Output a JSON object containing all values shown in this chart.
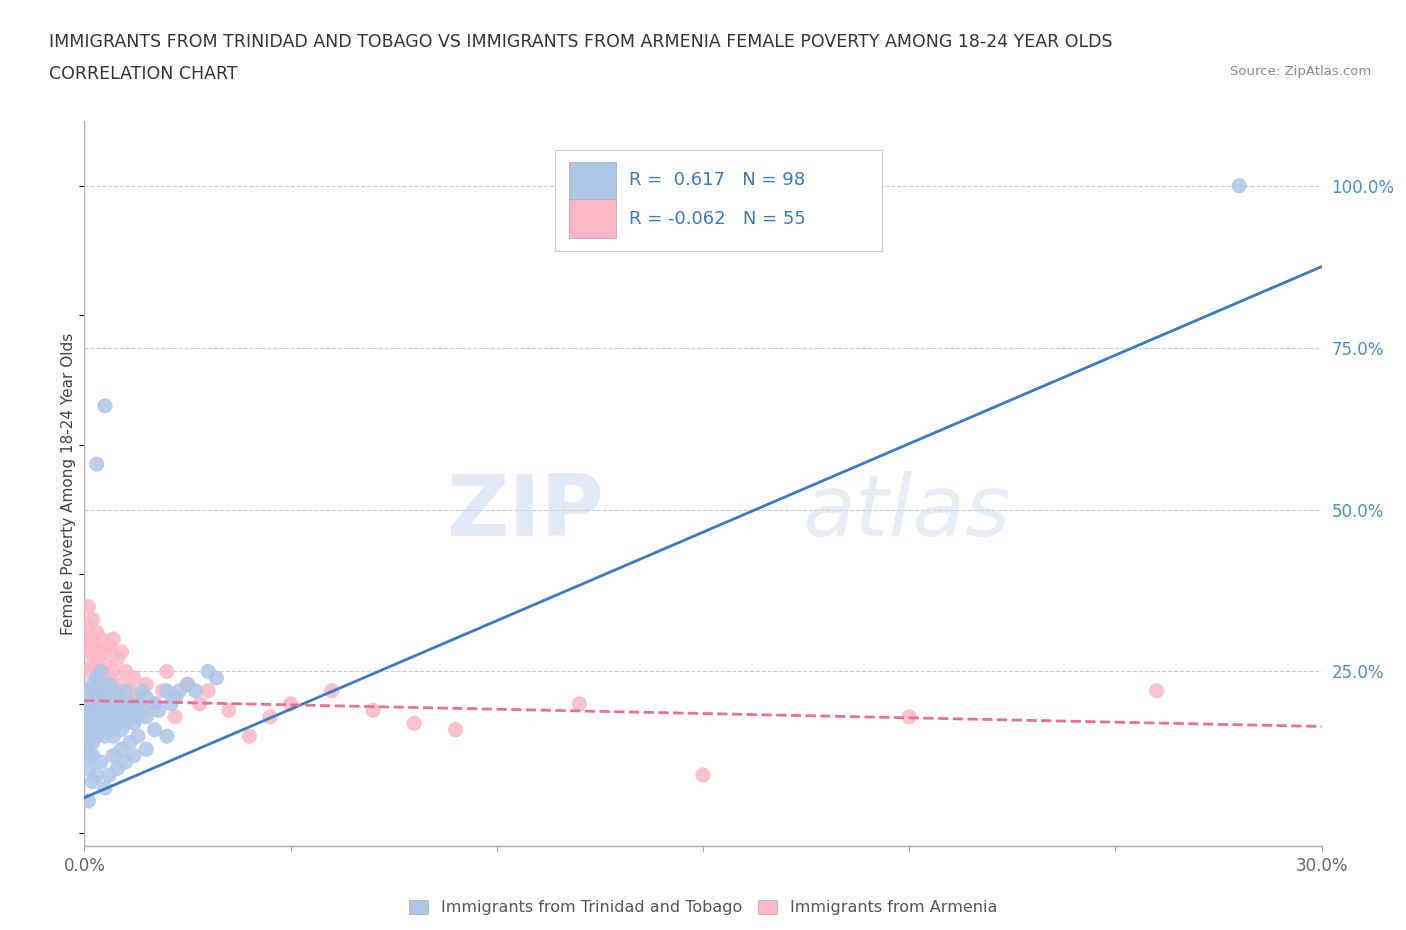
{
  "title_line1": "IMMIGRANTS FROM TRINIDAD AND TOBAGO VS IMMIGRANTS FROM ARMENIA FEMALE POVERTY AMONG 18-24 YEAR OLDS",
  "title_line2": "CORRELATION CHART",
  "source_text": "Source: ZipAtlas.com",
  "ylabel": "Female Poverty Among 18-24 Year Olds",
  "xlim": [
    0.0,
    0.3
  ],
  "ylim": [
    -0.02,
    1.1
  ],
  "xticks": [
    0.0,
    0.05,
    0.1,
    0.15,
    0.2,
    0.25,
    0.3
  ],
  "xticklabels": [
    "0.0%",
    "",
    "",
    "",
    "",
    "",
    "30.0%"
  ],
  "yticks_right": [
    0.25,
    0.5,
    0.75,
    1.0
  ],
  "ytick_labels_right": [
    "25.0%",
    "50.0%",
    "75.0%",
    "100.0%"
  ],
  "blue_color": "#aec6e8",
  "blue_line_color": "#3a7abf",
  "pink_color": "#f9b8c4",
  "pink_line_color": "#e87090",
  "blue_R": 0.617,
  "blue_N": 98,
  "pink_R": -0.062,
  "pink_N": 55,
  "watermark_zip": "ZIP",
  "watermark_atlas": "atlas",
  "background_color": "#ffffff",
  "grid_color": "#cccccc",
  "legend_label_blue": "Immigrants from Trinidad and Tobago",
  "legend_label_pink": "Immigrants from Armenia",
  "blue_trend_x0": 0.0,
  "blue_trend_y0": 0.055,
  "blue_trend_x1": 0.3,
  "blue_trend_y1": 0.875,
  "pink_trend_x0": 0.0,
  "pink_trend_y0": 0.205,
  "pink_trend_x1": 0.3,
  "pink_trend_y1": 0.165,
  "blue_scatter_x": [
    0.001,
    0.001,
    0.001,
    0.001,
    0.001,
    0.001,
    0.001,
    0.001,
    0.001,
    0.001,
    0.002,
    0.002,
    0.002,
    0.002,
    0.002,
    0.002,
    0.002,
    0.002,
    0.003,
    0.003,
    0.003,
    0.003,
    0.003,
    0.003,
    0.003,
    0.004,
    0.004,
    0.004,
    0.004,
    0.004,
    0.004,
    0.005,
    0.005,
    0.005,
    0.005,
    0.005,
    0.006,
    0.006,
    0.006,
    0.006,
    0.007,
    0.007,
    0.007,
    0.007,
    0.008,
    0.008,
    0.008,
    0.009,
    0.009,
    0.009,
    0.01,
    0.01,
    0.01,
    0.011,
    0.011,
    0.012,
    0.012,
    0.013,
    0.013,
    0.014,
    0.014,
    0.015,
    0.015,
    0.017,
    0.018,
    0.02,
    0.021,
    0.022,
    0.023,
    0.025,
    0.027,
    0.03,
    0.032,
    0.001,
    0.002,
    0.001,
    0.002,
    0.003,
    0.004,
    0.005,
    0.006,
    0.007,
    0.008,
    0.009,
    0.01,
    0.011,
    0.012,
    0.013,
    0.015,
    0.017,
    0.02,
    0.003,
    0.005,
    0.28
  ],
  "blue_scatter_y": [
    0.18,
    0.17,
    0.2,
    0.15,
    0.19,
    0.16,
    0.22,
    0.14,
    0.21,
    0.12,
    0.2,
    0.18,
    0.22,
    0.16,
    0.19,
    0.14,
    0.17,
    0.23,
    0.21,
    0.19,
    0.17,
    0.22,
    0.15,
    0.24,
    0.18,
    0.2,
    0.18,
    0.22,
    0.16,
    0.25,
    0.19,
    0.17,
    0.2,
    0.15,
    0.22,
    0.18,
    0.19,
    0.21,
    0.16,
    0.23,
    0.18,
    0.2,
    0.15,
    0.22,
    0.17,
    0.21,
    0.19,
    0.16,
    0.2,
    0.18,
    0.19,
    0.17,
    0.22,
    0.18,
    0.2,
    0.19,
    0.17,
    0.2,
    0.18,
    0.19,
    0.22,
    0.18,
    0.21,
    0.2,
    0.19,
    0.22,
    0.2,
    0.21,
    0.22,
    0.23,
    0.22,
    0.25,
    0.24,
    0.05,
    0.08,
    0.1,
    0.12,
    0.09,
    0.11,
    0.07,
    0.09,
    0.12,
    0.1,
    0.13,
    0.11,
    0.14,
    0.12,
    0.15,
    0.13,
    0.16,
    0.15,
    0.57,
    0.66,
    1.0
  ],
  "pink_scatter_x": [
    0.001,
    0.001,
    0.001,
    0.001,
    0.001,
    0.001,
    0.002,
    0.002,
    0.002,
    0.002,
    0.002,
    0.003,
    0.003,
    0.003,
    0.003,
    0.004,
    0.004,
    0.004,
    0.005,
    0.005,
    0.005,
    0.006,
    0.006,
    0.007,
    0.007,
    0.008,
    0.008,
    0.009,
    0.009,
    0.01,
    0.01,
    0.011,
    0.012,
    0.013,
    0.015,
    0.017,
    0.019,
    0.02,
    0.022,
    0.025,
    0.028,
    0.03,
    0.035,
    0.04,
    0.045,
    0.05,
    0.06,
    0.07,
    0.08,
    0.09,
    0.12,
    0.15,
    0.2,
    0.26
  ],
  "pink_scatter_y": [
    0.28,
    0.32,
    0.25,
    0.3,
    0.22,
    0.35,
    0.29,
    0.26,
    0.33,
    0.2,
    0.3,
    0.27,
    0.31,
    0.24,
    0.28,
    0.25,
    0.3,
    0.22,
    0.26,
    0.28,
    0.23,
    0.29,
    0.24,
    0.25,
    0.3,
    0.22,
    0.27,
    0.28,
    0.23,
    0.25,
    0.2,
    0.22,
    0.24,
    0.21,
    0.23,
    0.2,
    0.22,
    0.25,
    0.18,
    0.23,
    0.2,
    0.22,
    0.19,
    0.15,
    0.18,
    0.2,
    0.22,
    0.19,
    0.17,
    0.16,
    0.2,
    0.09,
    0.18,
    0.22
  ]
}
